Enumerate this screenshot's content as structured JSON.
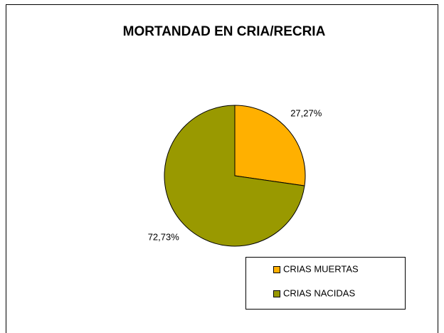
{
  "chart_data": {
    "type": "pie",
    "title": "MORTANDAD EN CRIA/RECRIA",
    "categories": [
      "CRIAS MUERTAS",
      "CRIAS NACIDAS"
    ],
    "values": [
      27.27,
      72.73
    ],
    "value_labels": [
      "27,27%",
      "72,73%"
    ],
    "colors": [
      "#ffb000",
      "#999900"
    ],
    "legend": "bottom-right"
  }
}
